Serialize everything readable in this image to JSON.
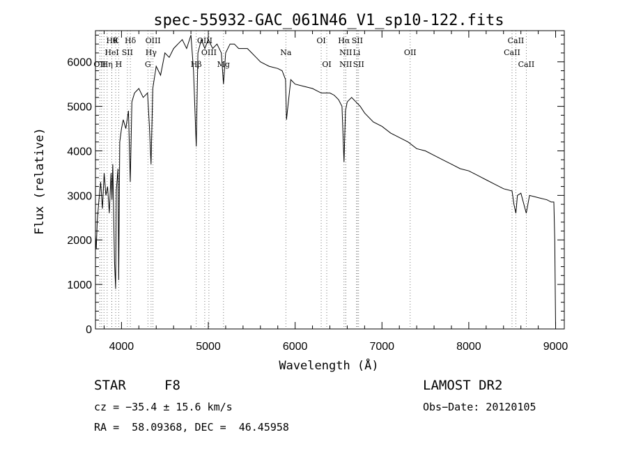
{
  "chart_data": {
    "type": "line",
    "title": "spec-55932-GAC_061N46_V1_sp10-122.fits",
    "xlabel": "Wavelength (Å)",
    "ylabel": "Flux (relative)",
    "xlim": [
      3700,
      9100
    ],
    "ylim": [
      0,
      6700
    ],
    "xticks": [
      4000,
      5000,
      6000,
      7000,
      8000,
      9000
    ],
    "yticks": [
      0,
      1000,
      2000,
      3000,
      4000,
      5000,
      6000
    ],
    "grid": false,
    "series": [
      {
        "x": [
          3700,
          3710,
          3720,
          3740,
          3760,
          3780,
          3800,
          3820,
          3840,
          3860,
          3880,
          3890,
          3900,
          3920,
          3933,
          3940,
          3960,
          3968,
          3980,
          4000,
          4020,
          4050,
          4080,
          4101,
          4120,
          4150,
          4200,
          4250,
          4300,
          4320,
          4340,
          4360,
          4400,
          4450,
          4500,
          4550,
          4600,
          4650,
          4700,
          4750,
          4800,
          4830,
          4861,
          4880,
          4920,
          4960,
          5000,
          5050,
          5100,
          5150,
          5175,
          5200,
          5250,
          5300,
          5350,
          5400,
          5450,
          5500,
          5550,
          5600,
          5700,
          5800,
          5850,
          5890,
          5900,
          5950,
          6000,
          6100,
          6200,
          6300,
          6400,
          6450,
          6500,
          6540,
          6563,
          6580,
          6600,
          6650,
          6700,
          6750,
          6800,
          6900,
          7000,
          7100,
          7200,
          7300,
          7400,
          7500,
          7600,
          7700,
          7800,
          7900,
          8000,
          8100,
          8200,
          8300,
          8400,
          8498,
          8520,
          8542,
          8560,
          8600,
          8662,
          8700,
          8800,
          8900,
          8950,
          8980,
          8990,
          9000
        ],
        "y": [
          2100,
          1800,
          2400,
          2900,
          3300,
          2700,
          3500,
          3000,
          3200,
          2600,
          3500,
          2900,
          3700,
          1500,
          900,
          3100,
          3600,
          1100,
          4200,
          4500,
          4700,
          4500,
          4900,
          3300,
          5100,
          5300,
          5400,
          5200,
          5300,
          4600,
          3700,
          5400,
          5900,
          5700,
          6200,
          6100,
          6300,
          6400,
          6500,
          6300,
          6600,
          5800,
          4100,
          6200,
          6500,
          6300,
          6500,
          6300,
          6400,
          6200,
          5500,
          6200,
          6400,
          6400,
          6300,
          6300,
          6300,
          6200,
          6100,
          6000,
          5900,
          5850,
          5800,
          5600,
          4700,
          5600,
          5500,
          5450,
          5400,
          5300,
          5300,
          5250,
          5150,
          5000,
          3750,
          4900,
          5100,
          5200,
          5100,
          5000,
          4850,
          4650,
          4550,
          4400,
          4300,
          4200,
          4050,
          4000,
          3900,
          3800,
          3700,
          3600,
          3550,
          3450,
          3350,
          3250,
          3150,
          3100,
          2800,
          2600,
          3000,
          3050,
          2600,
          3000,
          2950,
          2900,
          2850,
          2850,
          2000,
          50
        ]
      }
    ],
    "lines": [
      {
        "wl": 3750,
        "label": "OII",
        "row": 3
      },
      {
        "wl": 3771,
        "label": "",
        "row": 0
      },
      {
        "wl": 3798,
        "label": "",
        "row": 0
      },
      {
        "wl": 3835,
        "label": "Hη",
        "row": 3
      },
      {
        "wl": 3889,
        "label": "Hθ",
        "row": 1
      },
      {
        "wl": 3889,
        "label": "HeI",
        "row": 2
      },
      {
        "wl": 3933,
        "label": "K",
        "row": 1
      },
      {
        "wl": 3968,
        "label": "H",
        "row": 3
      },
      {
        "wl": 4068,
        "label": "SII",
        "row": 2
      },
      {
        "wl": 4102,
        "label": "Hδ",
        "row": 1
      },
      {
        "wl": 4304,
        "label": "G",
        "row": 3
      },
      {
        "wl": 4341,
        "label": "Hγ",
        "row": 2
      },
      {
        "wl": 4363,
        "label": "OIII",
        "row": 1
      },
      {
        "wl": 4861,
        "label": "Hβ",
        "row": 3
      },
      {
        "wl": 4959,
        "label": "OIII",
        "row": 1
      },
      {
        "wl": 5007,
        "label": "OIII",
        "row": 2
      },
      {
        "wl": 5175,
        "label": "Mg",
        "row": 3
      },
      {
        "wl": 5893,
        "label": "Na",
        "row": 2
      },
      {
        "wl": 6300,
        "label": "OI",
        "row": 1
      },
      {
        "wl": 6364,
        "label": "OI",
        "row": 3
      },
      {
        "wl": 6563,
        "label": "Hα",
        "row": 1
      },
      {
        "wl": 6583,
        "label": "NII",
        "row": 2
      },
      {
        "wl": 6583,
        "label": "NII",
        "row": 3
      },
      {
        "wl": 6716,
        "label": "SII",
        "row": 1
      },
      {
        "wl": 6708,
        "label": "Li",
        "row": 2
      },
      {
        "wl": 6731,
        "label": "SII",
        "row": 3
      },
      {
        "wl": 7325,
        "label": "OII",
        "row": 2
      },
      {
        "wl": 8498,
        "label": "CaII",
        "row": 2
      },
      {
        "wl": 8542,
        "label": "CaII",
        "row": 1
      },
      {
        "wl": 8662,
        "label": "CaII",
        "row": 3
      }
    ]
  },
  "info": {
    "object_class": "STAR",
    "subclass": "F8",
    "survey": "LAMOST DR2",
    "cz": "cz = −35.4 ± 15.6 km/s",
    "obs_date": "Obs−Date: 20120105",
    "coords": "RA =  58.09368, DEC =  46.45958"
  },
  "colors": {
    "line": "#000000",
    "marker_line": "#555555",
    "background": "#ffffff"
  }
}
